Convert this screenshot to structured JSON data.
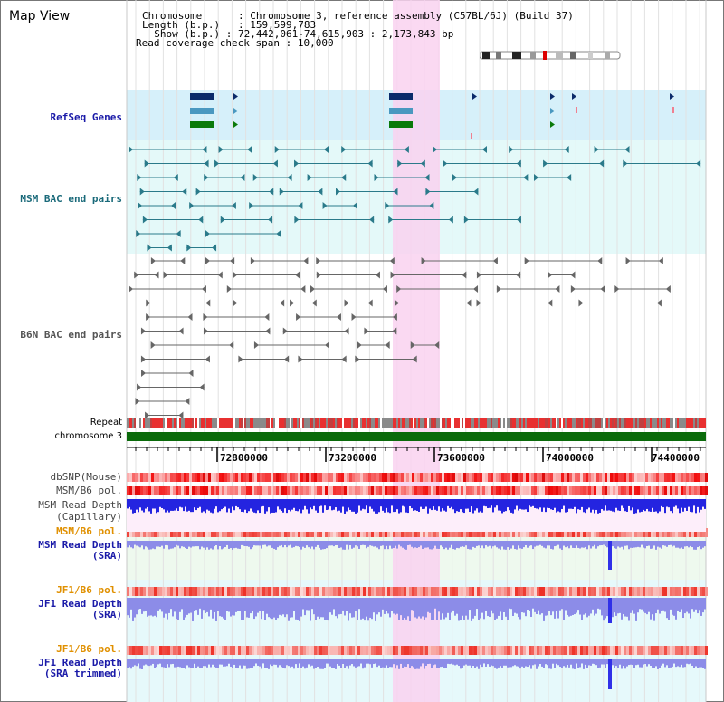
{
  "header": {
    "title": "Map View",
    "info": {
      "chromosome_key": "Chromosome",
      "chromosome_value": "Chromosome 3, reference assembly (C57BL/6J) (Build 37)",
      "length_key": "Length (b.p.)",
      "length_value": "159,599,783",
      "show_key": "Show (b.p.)",
      "show_value": "72,442,061-74,615,903 : 2,173,843 bp",
      "read_key": "Read coverage check span",
      "read_value": "10,000"
    }
  },
  "tracks": {
    "refseq": {
      "label": "RefSeq Genes",
      "color": "#1a1aa8"
    },
    "msm_bac": {
      "label": "MSM BAC end pairs",
      "color": "#1a6a7a"
    },
    "b6n_bac": {
      "label": "B6N BAC end pairs",
      "color": "#555555"
    },
    "repeat": {
      "label": "Repeat"
    },
    "chromosome": {
      "label": "chromosome 3"
    },
    "dbsnp": {
      "label": "dbSNP(Mouse)"
    },
    "msm_b6_pol_1": {
      "label": "MSM/B6 pol."
    },
    "msm_read_depth_cap": {
      "label": "MSM Read Depth",
      "sub": "(Capillary)"
    },
    "msm_b6_pol_2": {
      "label": "MSM/B6 pol.",
      "color": "#e09000"
    },
    "msm_read_depth_sra": {
      "label": "MSM Read Depth",
      "sub": "(SRA)",
      "color": "#1a1aa8"
    },
    "jf1_b6_pol_1": {
      "label": "JF1/B6 pol.",
      "color": "#e09000"
    },
    "jf1_read_depth_sra": {
      "label": "JF1 Read Depth",
      "sub": "(SRA)",
      "color": "#1a1aa8"
    },
    "jf1_b6_pol_2": {
      "label": "JF1/B6 pol.",
      "color": "#e09000"
    },
    "jf1_read_depth_trim": {
      "label": "JF1 Read Depth",
      "sub": "(SRA trimmed)",
      "color": "#1a1aa8"
    }
  },
  "axis": {
    "ticks": [
      "72800000",
      "73200000",
      "73600000",
      "74000000",
      "74400000"
    ]
  },
  "colors": {
    "highlight": "#f9d2f0",
    "refseq_bg": "#d6f0fa",
    "msm_bg": "#e4f9f9",
    "gene_dark": "#0a2a6a",
    "gene_mid": "#4a98c0",
    "gene_green": "#0a7a0a",
    "chrom_bar": "#0a6a0a",
    "depth_blue": "#2424e0",
    "sra_blue": "#8c8ce8"
  }
}
